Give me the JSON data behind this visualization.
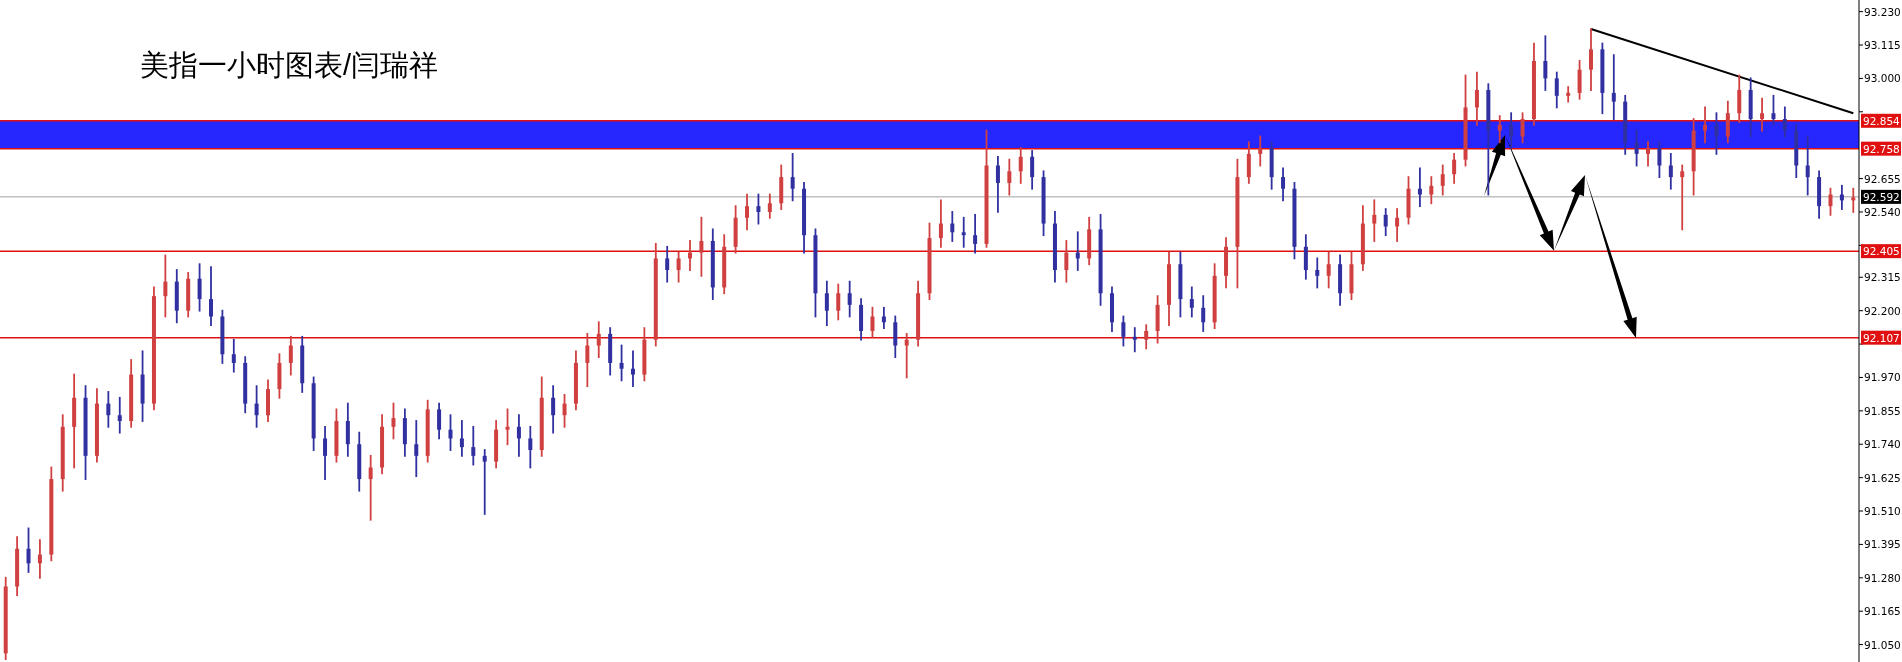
{
  "chart_data": {
    "type": "candlestick",
    "title": "美指一小时图表/闫瑞祥",
    "categories": [
      null,
      null,
      null,
      null,
      null,
      null,
      null,
      null,
      null,
      null,
      null,
      null,
      null,
      null,
      null,
      null,
      null,
      null,
      null,
      null,
      null,
      null,
      null,
      null,
      null,
      null,
      null,
      null,
      null,
      null,
      null,
      null,
      null,
      null,
      null,
      null,
      null,
      null,
      null,
      null,
      null,
      null,
      null,
      null,
      null,
      null,
      null,
      null,
      null,
      null,
      null,
      null,
      null,
      null,
      null,
      null,
      null,
      null,
      null,
      null,
      null,
      null,
      null,
      null,
      null,
      null,
      null,
      null,
      null,
      null,
      null,
      null,
      null,
      null,
      null,
      null,
      null,
      null,
      null,
      null,
      null,
      null,
      null,
      null,
      null,
      null,
      null,
      null,
      null,
      null,
      null,
      null,
      null,
      null,
      null,
      null,
      null,
      null,
      null,
      null,
      null,
      null,
      null,
      null,
      null,
      null,
      null,
      null,
      null,
      null,
      null,
      null,
      null,
      null,
      null,
      null,
      null,
      null,
      null,
      null,
      null,
      null,
      null,
      null,
      null,
      null,
      null,
      null,
      null,
      null,
      null,
      null,
      null,
      null,
      null,
      null,
      null,
      null,
      null,
      null,
      null,
      null,
      null,
      null,
      null,
      null,
      null,
      null,
      null,
      null,
      null,
      null,
      null,
      null,
      null,
      null,
      null,
      null,
      null,
      null,
      null,
      null,
      null
    ],
    "ohlc": [
      [
        91.02,
        91.28,
        91.0,
        91.25
      ],
      [
        91.25,
        91.42,
        91.22,
        91.38
      ],
      [
        91.38,
        91.45,
        91.3,
        91.33
      ],
      [
        91.33,
        91.41,
        91.28,
        91.36
      ],
      [
        91.36,
        91.66,
        91.34,
        91.62
      ],
      [
        91.62,
        91.84,
        91.58,
        91.8
      ],
      [
        91.8,
        91.98,
        91.66,
        91.9
      ],
      [
        91.9,
        91.94,
        91.62,
        91.7
      ],
      [
        91.7,
        91.93,
        91.68,
        91.88
      ],
      [
        91.88,
        91.92,
        91.8,
        91.84
      ],
      [
        91.84,
        91.9,
        91.78,
        91.82
      ],
      [
        91.82,
        92.03,
        91.8,
        91.98
      ],
      [
        91.98,
        92.06,
        91.82,
        91.88
      ],
      [
        91.88,
        92.28,
        91.86,
        92.25
      ],
      [
        92.25,
        92.39,
        92.18,
        92.3
      ],
      [
        92.3,
        92.34,
        92.16,
        92.2
      ],
      [
        92.2,
        92.33,
        92.18,
        92.31
      ],
      [
        92.31,
        92.36,
        92.2,
        92.24
      ],
      [
        92.24,
        92.35,
        92.15,
        92.18
      ],
      [
        92.18,
        92.2,
        92.02,
        92.05
      ],
      [
        92.05,
        92.1,
        91.99,
        92.02
      ],
      [
        92.02,
        92.04,
        91.85,
        91.88
      ],
      [
        91.88,
        91.94,
        91.8,
        91.84
      ],
      [
        91.84,
        91.96,
        91.82,
        91.93
      ],
      [
        91.93,
        92.05,
        91.9,
        92.02
      ],
      [
        92.02,
        92.11,
        91.98,
        92.08
      ],
      [
        92.08,
        92.11,
        91.92,
        91.95
      ],
      [
        91.95,
        91.97,
        91.72,
        91.76
      ],
      [
        91.76,
        91.8,
        91.62,
        91.7
      ],
      [
        91.7,
        91.86,
        91.68,
        91.82
      ],
      [
        91.82,
        91.88,
        91.7,
        91.74
      ],
      [
        91.74,
        91.78,
        91.58,
        91.62
      ],
      [
        91.62,
        91.7,
        91.48,
        91.66
      ],
      [
        91.66,
        91.84,
        91.64,
        91.8
      ],
      [
        91.8,
        91.88,
        91.76,
        91.83
      ],
      [
        91.83,
        91.86,
        91.7,
        91.74
      ],
      [
        91.74,
        91.82,
        91.63,
        91.7
      ],
      [
        91.7,
        91.89,
        91.68,
        91.86
      ],
      [
        91.86,
        91.88,
        91.76,
        91.79
      ],
      [
        91.79,
        91.84,
        91.72,
        91.76
      ],
      [
        91.76,
        91.82,
        91.7,
        91.73
      ],
      [
        91.73,
        91.8,
        91.67,
        91.7
      ],
      [
        91.7,
        91.72,
        91.5,
        91.68
      ],
      [
        91.68,
        91.82,
        91.66,
        91.79
      ],
      [
        91.79,
        91.86,
        91.74,
        91.8
      ],
      [
        91.8,
        91.84,
        91.7,
        91.76
      ],
      [
        91.76,
        91.8,
        91.66,
        91.72
      ],
      [
        91.72,
        91.97,
        91.7,
        91.9
      ],
      [
        91.9,
        91.94,
        91.78,
        91.84
      ],
      [
        91.84,
        91.91,
        91.8,
        91.88
      ],
      [
        91.88,
        92.06,
        91.86,
        92.02
      ],
      [
        92.02,
        92.12,
        91.94,
        92.08
      ],
      [
        92.08,
        92.16,
        92.04,
        92.12
      ],
      [
        92.12,
        92.14,
        91.98,
        92.02
      ],
      [
        92.02,
        92.08,
        91.96,
        92.0
      ],
      [
        92.0,
        92.06,
        91.94,
        91.98
      ],
      [
        91.98,
        92.14,
        91.96,
        92.1
      ],
      [
        92.1,
        92.43,
        92.08,
        92.38
      ],
      [
        92.38,
        92.42,
        92.3,
        92.34
      ],
      [
        92.34,
        92.4,
        92.3,
        92.38
      ],
      [
        92.38,
        92.44,
        92.34,
        92.4
      ],
      [
        92.4,
        92.52,
        92.32,
        92.44
      ],
      [
        92.44,
        92.48,
        92.24,
        92.28
      ],
      [
        92.28,
        92.46,
        92.26,
        92.42
      ],
      [
        92.42,
        92.56,
        92.4,
        92.52
      ],
      [
        92.52,
        92.6,
        92.48,
        92.56
      ],
      [
        92.56,
        92.6,
        92.5,
        92.54
      ],
      [
        92.54,
        92.6,
        92.52,
        92.57
      ],
      [
        92.57,
        92.7,
        92.55,
        92.66
      ],
      [
        92.66,
        92.74,
        92.58,
        92.62
      ],
      [
        92.62,
        92.64,
        92.4,
        92.46
      ],
      [
        92.46,
        92.48,
        92.18,
        92.26
      ],
      [
        92.26,
        92.3,
        92.15,
        92.2
      ],
      [
        92.2,
        92.29,
        92.17,
        92.26
      ],
      [
        92.26,
        92.3,
        92.18,
        92.22
      ],
      [
        92.22,
        92.24,
        92.1,
        92.13
      ],
      [
        92.13,
        92.21,
        92.11,
        92.18
      ],
      [
        92.18,
        92.21,
        92.14,
        92.16
      ],
      [
        92.16,
        92.18,
        92.04,
        92.08
      ],
      [
        92.08,
        92.12,
        91.97,
        92.1
      ],
      [
        92.1,
        92.3,
        92.08,
        92.26
      ],
      [
        92.26,
        92.5,
        92.24,
        92.45
      ],
      [
        92.45,
        92.58,
        92.42,
        92.5
      ],
      [
        92.5,
        92.54,
        92.44,
        92.47
      ],
      [
        92.47,
        92.52,
        92.42,
        92.46
      ],
      [
        92.46,
        92.53,
        92.4,
        92.43
      ],
      [
        92.43,
        92.82,
        92.42,
        92.7
      ],
      [
        92.7,
        92.73,
        92.54,
        92.64
      ],
      [
        92.64,
        92.72,
        92.6,
        92.68
      ],
      [
        92.68,
        92.76,
        92.64,
        92.73
      ],
      [
        92.73,
        92.75,
        92.62,
        92.66
      ],
      [
        92.66,
        92.68,
        92.46,
        92.5
      ],
      [
        92.5,
        92.54,
        92.3,
        92.34
      ],
      [
        92.34,
        92.44,
        92.3,
        92.4
      ],
      [
        92.4,
        92.47,
        92.34,
        92.38
      ],
      [
        92.38,
        92.52,
        92.36,
        92.48
      ],
      [
        92.48,
        92.53,
        92.22,
        92.26
      ],
      [
        92.26,
        92.28,
        92.13,
        92.16
      ],
      [
        92.16,
        92.18,
        92.08,
        92.11
      ],
      [
        92.11,
        92.14,
        92.06,
        92.1
      ],
      [
        92.1,
        92.15,
        92.07,
        92.13
      ],
      [
        92.13,
        92.25,
        92.09,
        92.22
      ],
      [
        92.22,
        92.4,
        92.15,
        92.36
      ],
      [
        92.36,
        92.4,
        92.18,
        92.24
      ],
      [
        92.24,
        92.28,
        92.18,
        92.21
      ],
      [
        92.21,
        92.25,
        92.13,
        92.16
      ],
      [
        92.16,
        92.36,
        92.14,
        92.32
      ],
      [
        92.32,
        92.45,
        92.28,
        92.42
      ],
      [
        92.42,
        92.72,
        92.28,
        92.66
      ],
      [
        92.66,
        92.78,
        92.64,
        92.74
      ],
      [
        92.74,
        92.8,
        92.7,
        92.76
      ],
      [
        92.76,
        92.78,
        92.62,
        92.66
      ],
      [
        92.66,
        92.69,
        92.58,
        92.62
      ],
      [
        92.62,
        92.64,
        92.38,
        92.42
      ],
      [
        92.42,
        92.46,
        92.31,
        92.34
      ],
      [
        92.34,
        92.38,
        92.28,
        92.32
      ],
      [
        92.32,
        92.4,
        92.28,
        92.36
      ],
      [
        92.36,
        92.39,
        92.22,
        92.26
      ],
      [
        92.26,
        92.4,
        92.24,
        92.36
      ],
      [
        92.36,
        92.56,
        92.34,
        92.5
      ],
      [
        92.5,
        92.58,
        92.44,
        92.53
      ],
      [
        92.53,
        92.55,
        92.46,
        92.49
      ],
      [
        92.49,
        92.55,
        92.44,
        92.52
      ],
      [
        92.52,
        92.66,
        92.5,
        92.62
      ],
      [
        92.62,
        92.69,
        92.56,
        92.6
      ],
      [
        92.6,
        92.66,
        92.57,
        92.63
      ],
      [
        92.63,
        92.7,
        92.6,
        92.67
      ],
      [
        92.67,
        92.74,
        92.64,
        92.72
      ],
      [
        92.72,
        93.01,
        92.7,
        92.9
      ],
      [
        92.9,
        93.02,
        92.84,
        92.96
      ],
      [
        92.96,
        92.98,
        92.6,
        92.82
      ],
      [
        92.82,
        92.87,
        92.78,
        92.84
      ],
      [
        92.84,
        92.88,
        92.76,
        92.8
      ],
      [
        92.8,
        92.88,
        92.78,
        92.86
      ],
      [
        92.86,
        93.12,
        92.84,
        93.06
      ],
      [
        93.06,
        93.145,
        92.96,
        93.0
      ],
      [
        93.0,
        93.02,
        92.9,
        92.94
      ],
      [
        92.94,
        92.97,
        92.92,
        92.95
      ],
      [
        92.95,
        93.06,
        92.93,
        93.03
      ],
      [
        93.03,
        93.17,
        92.96,
        93.1
      ],
      [
        93.1,
        93.12,
        92.88,
        92.95
      ],
      [
        92.95,
        93.08,
        92.86,
        92.92
      ],
      [
        92.92,
        92.94,
        92.74,
        92.78
      ],
      [
        92.78,
        92.82,
        92.7,
        92.74
      ],
      [
        92.74,
        92.78,
        92.7,
        92.76
      ],
      [
        92.76,
        92.78,
        92.66,
        92.7
      ],
      [
        92.7,
        92.74,
        92.62,
        92.66
      ],
      [
        92.66,
        92.7,
        92.48,
        92.68
      ],
      [
        92.68,
        92.86,
        92.6,
        92.82
      ],
      [
        92.82,
        92.9,
        92.78,
        92.84
      ],
      [
        92.84,
        92.88,
        92.74,
        92.8
      ],
      [
        92.8,
        92.92,
        92.78,
        92.88
      ],
      [
        92.88,
        93.01,
        92.85,
        92.96
      ],
      [
        92.96,
        93.0,
        92.8,
        92.86
      ],
      [
        92.86,
        92.93,
        92.82,
        92.88
      ],
      [
        92.88,
        92.94,
        92.84,
        92.86
      ],
      [
        92.86,
        92.9,
        92.8,
        92.82
      ],
      [
        92.82,
        92.84,
        92.66,
        92.7
      ],
      [
        92.7,
        92.8,
        92.6,
        92.66
      ],
      [
        92.66,
        92.68,
        92.52,
        92.56
      ],
      [
        92.56,
        92.62,
        92.53,
        92.6
      ],
      [
        92.6,
        92.63,
        92.55,
        92.58
      ],
      [
        92.58,
        92.62,
        92.54,
        92.59
      ]
    ],
    "colors": [
      "#d04040",
      "#d04040",
      "#3030a0",
      "#d04040",
      "#d04040",
      "#d04040",
      "#d04040",
      "#3030a0",
      "#d04040",
      "#3030a0",
      "#3030a0",
      "#d04040",
      "#3030a0",
      "#d04040",
      "#d04040",
      "#3030a0",
      "#d04040",
      "#3030a0",
      "#3030a0",
      "#3030a0",
      "#3030a0",
      "#3030a0",
      "#3030a0",
      "#d04040",
      "#d04040",
      "#d04040",
      "#3030a0",
      "#3030a0",
      "#3030a0",
      "#d04040",
      "#3030a0",
      "#3030a0",
      "#d04040",
      "#d04040",
      "#d04040",
      "#3030a0",
      "#3030a0",
      "#d04040",
      "#3030a0",
      "#3030a0",
      "#3030a0",
      "#3030a0",
      "#3030a0",
      "#d04040",
      "#d04040",
      "#3030a0",
      "#3030a0",
      "#d04040",
      "#3030a0",
      "#d04040",
      "#d04040",
      "#d04040",
      "#d04040",
      "#3030a0",
      "#3030a0",
      "#3030a0",
      "#d04040",
      "#d04040",
      "#3030a0",
      "#d04040",
      "#d04040",
      "#d04040",
      "#3030a0",
      "#d04040",
      "#d04040",
      "#d04040",
      "#3030a0",
      "#d04040",
      "#d04040",
      "#3030a0",
      "#3030a0",
      "#3030a0",
      "#3030a0",
      "#d04040",
      "#3030a0",
      "#3030a0",
      "#d04040",
      "#3030a0",
      "#3030a0",
      "#d04040",
      "#d04040",
      "#d04040",
      "#d04040",
      "#3030a0",
      "#3030a0",
      "#3030a0",
      "#d04040",
      "#3030a0",
      "#d04040",
      "#d04040",
      "#3030a0",
      "#3030a0",
      "#3030a0",
      "#d04040",
      "#3030a0",
      "#d04040",
      "#3030a0",
      "#3030a0",
      "#3030a0",
      "#3030a0",
      "#d04040",
      "#d04040",
      "#d04040",
      "#3030a0",
      "#3030a0",
      "#3030a0",
      "#d04040",
      "#d04040",
      "#d04040",
      "#d04040",
      "#d04040",
      "#3030a0",
      "#3030a0",
      "#3030a0",
      "#3030a0",
      "#3030a0",
      "#d04040",
      "#3030a0",
      "#d04040",
      "#d04040",
      "#d04040",
      "#3030a0",
      "#d04040",
      "#d04040",
      "#3030a0",
      "#d04040",
      "#d04040",
      "#d04040",
      "#d04040",
      "#d04040",
      "#3030a0",
      "#d04040",
      "#3030a0",
      "#d04040",
      "#d04040",
      "#3030a0",
      "#3030a0",
      "#d04040",
      "#d04040",
      "#d04040",
      "#3030a0",
      "#3030a0",
      "#3030a0",
      "#3030a0",
      "#d04040",
      "#3030a0",
      "#3030a0",
      "#d04040",
      "#d04040",
      "#d04040",
      "#3030a0",
      "#d04040",
      "#d04040",
      "#3030a0",
      "#d04040",
      "#3030a0",
      "#3030a0",
      "#3030a0",
      "#3030a0",
      "#3030a0",
      "#d04040",
      "#3030a0",
      "#d04040"
    ],
    "ylim": [
      90.99,
      93.27
    ],
    "yticks": [
      {
        "value": 93.23,
        "label": "93.230"
      },
      {
        "value": 93.115,
        "label": "93.115"
      },
      {
        "value": 93.0,
        "label": "93.000"
      },
      {
        "value": 92.885,
        "label": null
      },
      {
        "value": 92.655,
        "label": "92.655"
      },
      {
        "value": 92.54,
        "label": "92.540"
      },
      {
        "value": 92.425,
        "label": null
      },
      {
        "value": 92.315,
        "label": "92.315"
      },
      {
        "value": 92.2,
        "label": "92.200"
      },
      {
        "value": 92.085,
        "label": null
      },
      {
        "value": 91.97,
        "label": "91.970"
      },
      {
        "value": 91.855,
        "label": "91.855"
      },
      {
        "value": 91.74,
        "label": "91.740"
      },
      {
        "value": 91.625,
        "label": "91.625"
      },
      {
        "value": 91.51,
        "label": "91.510"
      },
      {
        "value": 91.395,
        "label": "91.395"
      },
      {
        "value": 91.28,
        "label": "91.280"
      },
      {
        "value": 91.165,
        "label": "91.165"
      },
      {
        "value": 91.05,
        "label": "91.050"
      }
    ],
    "series": [
      {
        "type": "line",
        "color": "#000000",
        "values": [
          null,
          null,
          null,
          null,
          null,
          null,
          null,
          null,
          null,
          null,
          null,
          null,
          null,
          null,
          null,
          null,
          null,
          null,
          null,
          null,
          null,
          null,
          null,
          null,
          null,
          null,
          null,
          null,
          null,
          null,
          null,
          null,
          null,
          null,
          null,
          null,
          null,
          null,
          null,
          null,
          null,
          null,
          null,
          null,
          null,
          null,
          null,
          null,
          null,
          null,
          null,
          null,
          null,
          null,
          null,
          null,
          null,
          null,
          null,
          null,
          null,
          null,
          null,
          null,
          null,
          null,
          null,
          null,
          null,
          null,
          null,
          null,
          null,
          null,
          null,
          null,
          null,
          null,
          null,
          null,
          null,
          null,
          null,
          null,
          null,
          null,
          null,
          null,
          null,
          null,
          null,
          null,
          null,
          null,
          null,
          null,
          null,
          null,
          null,
          null,
          null,
          null,
          null,
          null,
          null,
          null,
          null,
          null,
          null,
          null,
          null,
          null,
          null,
          null,
          null,
          null,
          null,
          null,
          null,
          null,
          null,
          null,
          null,
          null,
          null,
          null,
          null,
          null,
          null,
          null,
          null,
          null,
          null,
          null,
          null,
          null,
          null,
          null,
          null,
          93.17,
          null,
          null,
          null,
          null,
          null,
          null,
          null,
          null,
          null,
          null,
          null,
          null,
          null,
          null,
          null,
          null,
          null,
          null,
          null,
          null,
          null,
          null,
          92.88
        ]
      }
    ],
    "tick_labels": "y",
    "bands": [
      {
        "axis": "y",
        "from": 92.758,
        "to": 92.854,
        "color": "#0000ff"
      }
    ],
    "ref_lines": [
      {
        "axis": "y",
        "value": 92.854,
        "label": "92.854",
        "color": "#e01010"
      },
      {
        "axis": "y",
        "value": 92.758,
        "label": "92.758",
        "color": "#e01010"
      },
      {
        "axis": "y",
        "value": 92.592,
        "label": "92.592",
        "color": "#c0c0c0"
      },
      {
        "axis": "y",
        "value": 92.405,
        "label": "92.405",
        "color": "#e01010"
      },
      {
        "axis": "y",
        "value": 92.107,
        "label": "92.107",
        "color": "#e01010"
      }
    ]
  }
}
